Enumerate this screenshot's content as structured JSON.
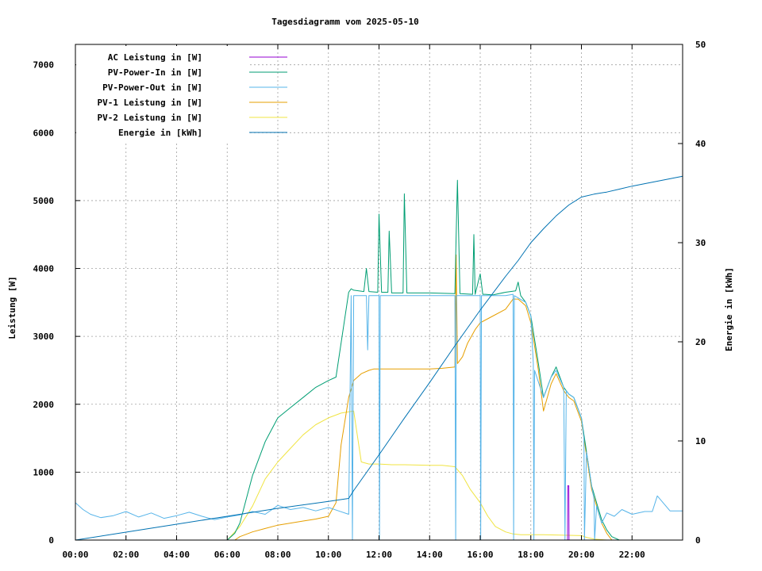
{
  "chart_data": {
    "type": "line",
    "title": "Tagesdiagramm vom 2025-05-10",
    "xlabel": "",
    "ylabel": "Leistung [W]",
    "y2label": "Energie in [kWh]",
    "xlim": [
      0,
      24
    ],
    "ylim": [
      0,
      7300
    ],
    "y2lim": [
      0,
      50
    ],
    "x_ticks": [
      {
        "v": 0,
        "label": "00:00"
      },
      {
        "v": 2,
        "label": "02:00"
      },
      {
        "v": 4,
        "label": "04:00"
      },
      {
        "v": 6,
        "label": "06:00"
      },
      {
        "v": 8,
        "label": "08:00"
      },
      {
        "v": 10,
        "label": "10:00"
      },
      {
        "v": 12,
        "label": "12:00"
      },
      {
        "v": 14,
        "label": "14:00"
      },
      {
        "v": 16,
        "label": "16:00"
      },
      {
        "v": 18,
        "label": "18:00"
      },
      {
        "v": 20,
        "label": "20:00"
      },
      {
        "v": 22,
        "label": "22:00"
      }
    ],
    "y_ticks": [
      {
        "v": 0,
        "label": "0"
      },
      {
        "v": 1000,
        "label": "1000"
      },
      {
        "v": 2000,
        "label": "2000"
      },
      {
        "v": 3000,
        "label": "3000"
      },
      {
        "v": 4000,
        "label": "4000"
      },
      {
        "v": 5000,
        "label": "5000"
      },
      {
        "v": 6000,
        "label": "6000"
      },
      {
        "v": 7000,
        "label": "7000"
      }
    ],
    "y2_ticks": [
      {
        "v": 0,
        "label": "0"
      },
      {
        "v": 10,
        "label": "10"
      },
      {
        "v": 20,
        "label": "20"
      },
      {
        "v": 30,
        "label": "30"
      },
      {
        "v": 40,
        "label": "40"
      },
      {
        "v": 50,
        "label": "50"
      }
    ],
    "grid": true,
    "legend_position": "top-left",
    "series": [
      {
        "name": "AC Leistung in [W]",
        "color": "#9400d3",
        "axis": "y1",
        "x": [
          0,
          19.45,
          19.46,
          19.5,
          19.51,
          24
        ],
        "y": [
          0,
          0,
          800,
          800,
          0,
          0
        ]
      },
      {
        "name": "PV-Power-In in [W]",
        "color": "#009e73",
        "axis": "y1",
        "x": [
          0,
          6.0,
          6.3,
          6.5,
          7.0,
          7.5,
          8.0,
          8.5,
          9.0,
          9.5,
          10.0,
          10.3,
          10.5,
          10.8,
          10.9,
          11.0,
          11.4,
          11.5,
          11.6,
          11.95,
          12.0,
          12.1,
          12.35,
          12.4,
          12.5,
          12.95,
          13.0,
          13.1,
          14.0,
          15.0,
          15.05,
          15.1,
          15.2,
          15.7,
          15.75,
          15.8,
          16.0,
          16.1,
          16.2,
          16.5,
          17.0,
          17.4,
          17.5,
          17.6,
          17.8,
          18.0,
          18.3,
          18.5,
          18.8,
          19.0,
          19.3,
          19.5,
          19.7,
          20.0,
          20.2,
          20.4,
          20.6,
          20.8,
          21.0,
          21.2,
          21.5,
          24
        ],
        "y": [
          0,
          0,
          100,
          250,
          950,
          1450,
          1800,
          1950,
          2100,
          2250,
          2350,
          2400,
          2900,
          3650,
          3700,
          3680,
          3660,
          4000,
          3660,
          3650,
          4800,
          3650,
          3650,
          4550,
          3640,
          3640,
          5100,
          3640,
          3640,
          3630,
          4500,
          5300,
          3630,
          3620,
          4500,
          3620,
          3920,
          3620,
          3620,
          3610,
          3650,
          3670,
          3800,
          3600,
          3500,
          3300,
          2600,
          2100,
          2400,
          2550,
          2250,
          2150,
          2100,
          1800,
          1300,
          800,
          550,
          300,
          150,
          50,
          0,
          0
        ]
      },
      {
        "name": "PV-Power-Out in [W]",
        "color": "#56b4e9",
        "axis": "y1",
        "x": [
          0,
          0.3,
          0.6,
          1.0,
          1.5,
          2.0,
          2.5,
          3.0,
          3.5,
          4.0,
          4.5,
          5.0,
          5.5,
          6.0,
          6.5,
          7.0,
          7.5,
          8.0,
          8.5,
          9.0,
          9.5,
          10.0,
          10.4,
          10.8,
          10.9,
          10.95,
          11.0,
          11.05,
          11.5,
          11.55,
          11.6,
          12.0,
          12.02,
          12.05,
          14.0,
          15.0,
          15.03,
          15.06,
          16.0,
          16.02,
          16.05,
          17.0,
          17.3,
          17.32,
          17.35,
          17.8,
          18.0,
          18.1,
          18.12,
          18.15,
          18.5,
          18.8,
          19.0,
          19.3,
          19.35,
          19.4,
          19.5,
          19.7,
          20.0,
          20.1,
          20.12,
          20.2,
          20.4,
          20.5,
          20.52,
          20.6,
          20.8,
          21.0,
          21.3,
          21.6,
          22.0,
          22.5,
          22.8,
          23.0,
          23.5,
          24
        ],
        "y": [
          550,
          450,
          380,
          330,
          360,
          420,
          340,
          400,
          320,
          360,
          410,
          350,
          300,
          340,
          370,
          420,
          380,
          510,
          450,
          480,
          430,
          480,
          430,
          380,
          3600,
          0,
          3600,
          3600,
          3600,
          2800,
          3600,
          3600,
          0,
          3600,
          3600,
          3600,
          0,
          3600,
          3600,
          0,
          3600,
          3600,
          3620,
          0,
          3600,
          3500,
          3300,
          2600,
          0,
          2500,
          2100,
          2400,
          2500,
          2250,
          0,
          2200,
          2150,
          2100,
          1800,
          1500,
          0,
          1300,
          800,
          600,
          0,
          500,
          250,
          400,
          350,
          450,
          380,
          420,
          420,
          650,
          430,
          430
        ]
      },
      {
        "name": "PV-1 Leistung in [W]",
        "color": "#e69f00",
        "axis": "y1",
        "x": [
          0,
          6.3,
          6.5,
          7.0,
          7.5,
          8.0,
          8.5,
          9.0,
          9.5,
          10.0,
          10.3,
          10.5,
          10.8,
          11.0,
          11.3,
          11.6,
          11.8,
          12.0,
          12.5,
          13.0,
          14.0,
          14.5,
          15.0,
          15.05,
          15.1,
          15.3,
          15.5,
          15.8,
          16.0,
          16.5,
          17.0,
          17.3,
          17.5,
          17.8,
          18.0,
          18.3,
          18.5,
          18.8,
          19.0,
          19.3,
          19.5,
          19.7,
          20.0,
          20.2,
          20.4,
          20.6,
          20.8,
          21.0,
          21.2,
          24
        ],
        "y": [
          0,
          0,
          50,
          120,
          170,
          220,
          250,
          280,
          310,
          350,
          550,
          1400,
          2100,
          2350,
          2450,
          2500,
          2520,
          2520,
          2520,
          2520,
          2520,
          2530,
          2550,
          4200,
          2600,
          2700,
          2900,
          3100,
          3200,
          3300,
          3400,
          3550,
          3550,
          3450,
          3200,
          2500,
          1900,
          2300,
          2450,
          2200,
          2100,
          2050,
          1750,
          1250,
          750,
          500,
          250,
          100,
          0,
          0
        ]
      },
      {
        "name": "PV-2 Leistung in [W]",
        "color": "#f0e442",
        "axis": "y1",
        "x": [
          0,
          6.0,
          6.5,
          7.0,
          7.5,
          8.0,
          8.5,
          9.0,
          9.5,
          10.0,
          10.5,
          11.0,
          11.3,
          11.6,
          12.0,
          12.5,
          13.0,
          14.0,
          14.5,
          15.0,
          15.3,
          15.6,
          16.0,
          16.3,
          16.6,
          17.0,
          17.3,
          17.6,
          18.0,
          18.5,
          19.0,
          19.5,
          20.0,
          20.2,
          20.5,
          21.0,
          24
        ],
        "y": [
          0,
          0,
          200,
          500,
          900,
          1150,
          1350,
          1550,
          1700,
          1800,
          1870,
          1900,
          1150,
          1120,
          1120,
          1110,
          1110,
          1100,
          1100,
          1080,
          950,
          750,
          550,
          350,
          200,
          120,
          90,
          80,
          80,
          80,
          75,
          70,
          65,
          40,
          15,
          0,
          0
        ]
      },
      {
        "name": "Energie in [kWh]",
        "color": "#0072b2",
        "axis": "y2",
        "x": [
          0,
          2,
          4,
          6,
          8,
          10,
          10.8,
          11,
          12,
          13,
          14,
          15,
          16,
          17,
          17.5,
          18,
          18.5,
          19,
          19.5,
          20,
          20.5,
          21,
          21.5,
          22,
          23,
          24
        ],
        "y": [
          0,
          0.8,
          1.6,
          2.4,
          3.2,
          3.9,
          4.2,
          5.0,
          8.6,
          12.3,
          15.9,
          19.6,
          23.2,
          26.6,
          28.2,
          30.0,
          31.4,
          32.7,
          33.8,
          34.6,
          34.9,
          35.1,
          35.4,
          35.7,
          36.2,
          36.7
        ]
      }
    ]
  }
}
